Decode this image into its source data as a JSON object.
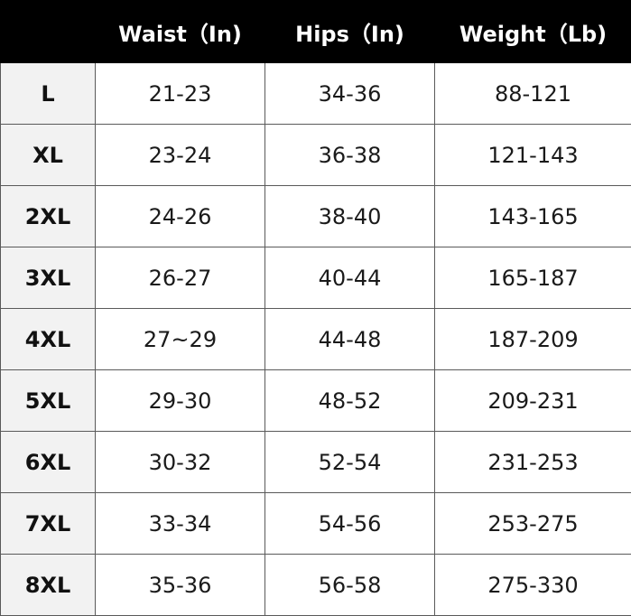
{
  "headers": {
    "size": "",
    "waist": "Waist（In)",
    "hips": "Hips（In)",
    "weight": "Weight（Lb)"
  },
  "rows": [
    {
      "size": "L",
      "waist": "21-23",
      "hips": "34-36",
      "weight": "88-121"
    },
    {
      "size": "XL",
      "waist": "23-24",
      "hips": "36-38",
      "weight": "121-143"
    },
    {
      "size": "2XL",
      "waist": "24-26",
      "hips": "38-40",
      "weight": "143-165"
    },
    {
      "size": "3XL",
      "waist": "26-27",
      "hips": "40-44",
      "weight": "165-187"
    },
    {
      "size": "4XL",
      "waist": "27~29",
      "hips": "44-48",
      "weight": "187-209"
    },
    {
      "size": "5XL",
      "waist": "29-30",
      "hips": "48-52",
      "weight": "209-231"
    },
    {
      "size": "6XL",
      "waist": "30-32",
      "hips": "52-54",
      "weight": "231-253"
    },
    {
      "size": "7XL",
      "waist": "33-34",
      "hips": "54-56",
      "weight": "253-275"
    },
    {
      "size": "8XL",
      "waist": "35-36",
      "hips": "56-58",
      "weight": "275-330"
    }
  ]
}
